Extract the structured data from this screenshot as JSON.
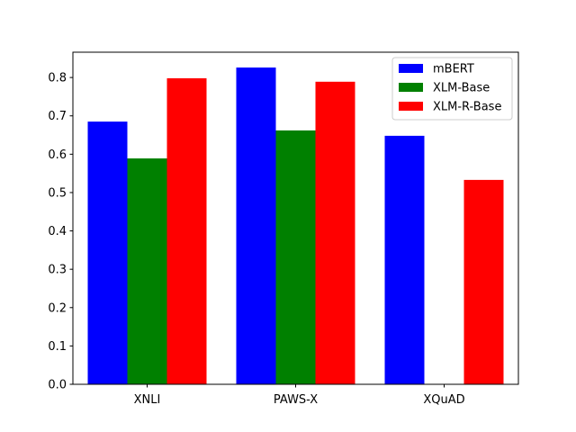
{
  "chart_data": {
    "type": "bar",
    "title": "",
    "xlabel": "",
    "ylabel": "",
    "categories": [
      "XNLI",
      "PAWS-X",
      "XQuAD"
    ],
    "series": [
      {
        "name": "mBERT",
        "color": "#0000ff",
        "values": [
          0.685,
          0.826,
          0.648
        ]
      },
      {
        "name": "XLM-Base",
        "color": "#008000",
        "values": [
          0.589,
          0.662,
          null
        ]
      },
      {
        "name": "XLM-R-Base",
        "color": "#ff0000",
        "values": [
          0.798,
          0.789,
          0.533
        ]
      }
    ],
    "ylim": [
      0,
      0.866
    ],
    "yticks": [
      0.0,
      0.1,
      0.2,
      0.3,
      0.4,
      0.5,
      0.6,
      0.7,
      0.8
    ],
    "ytick_labels": [
      "0.0",
      "0.1",
      "0.2",
      "0.3",
      "0.4",
      "0.5",
      "0.6",
      "0.7",
      "0.8"
    ],
    "grid": false,
    "legend_position": "top-right"
  }
}
